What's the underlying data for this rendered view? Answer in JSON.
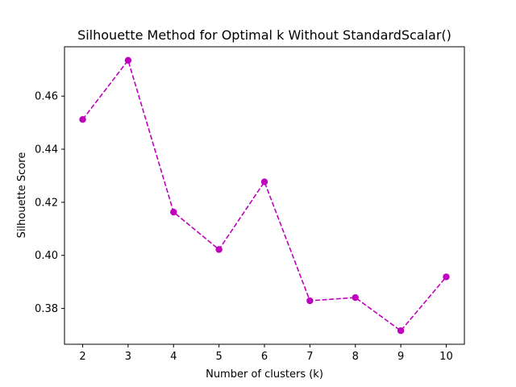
{
  "chart_data": {
    "type": "line",
    "title": "Silhouette Method for Optimal k Without StandardScalar()",
    "xlabel": "Number of clusters (k)",
    "ylabel": "Silhouette Score",
    "x": [
      2,
      3,
      4,
      5,
      6,
      7,
      8,
      9,
      10
    ],
    "series": [
      {
        "values": [
          0.4512,
          0.4735,
          0.4163,
          0.4022,
          0.4277,
          0.3829,
          0.3841,
          0.3716,
          0.3919
        ],
        "color": "#bf00bf",
        "line_style": "dashed",
        "marker": "circle"
      }
    ],
    "xlim": [
      1.6,
      10.4
    ],
    "ylim": [
      0.3665,
      0.4786
    ],
    "x_ticks": [
      "2",
      "3",
      "4",
      "5",
      "6",
      "7",
      "8",
      "9",
      "10"
    ],
    "y_ticks": [
      "0.38",
      "0.40",
      "0.42",
      "0.44",
      "0.46"
    ],
    "grid": false,
    "legend": "none"
  }
}
